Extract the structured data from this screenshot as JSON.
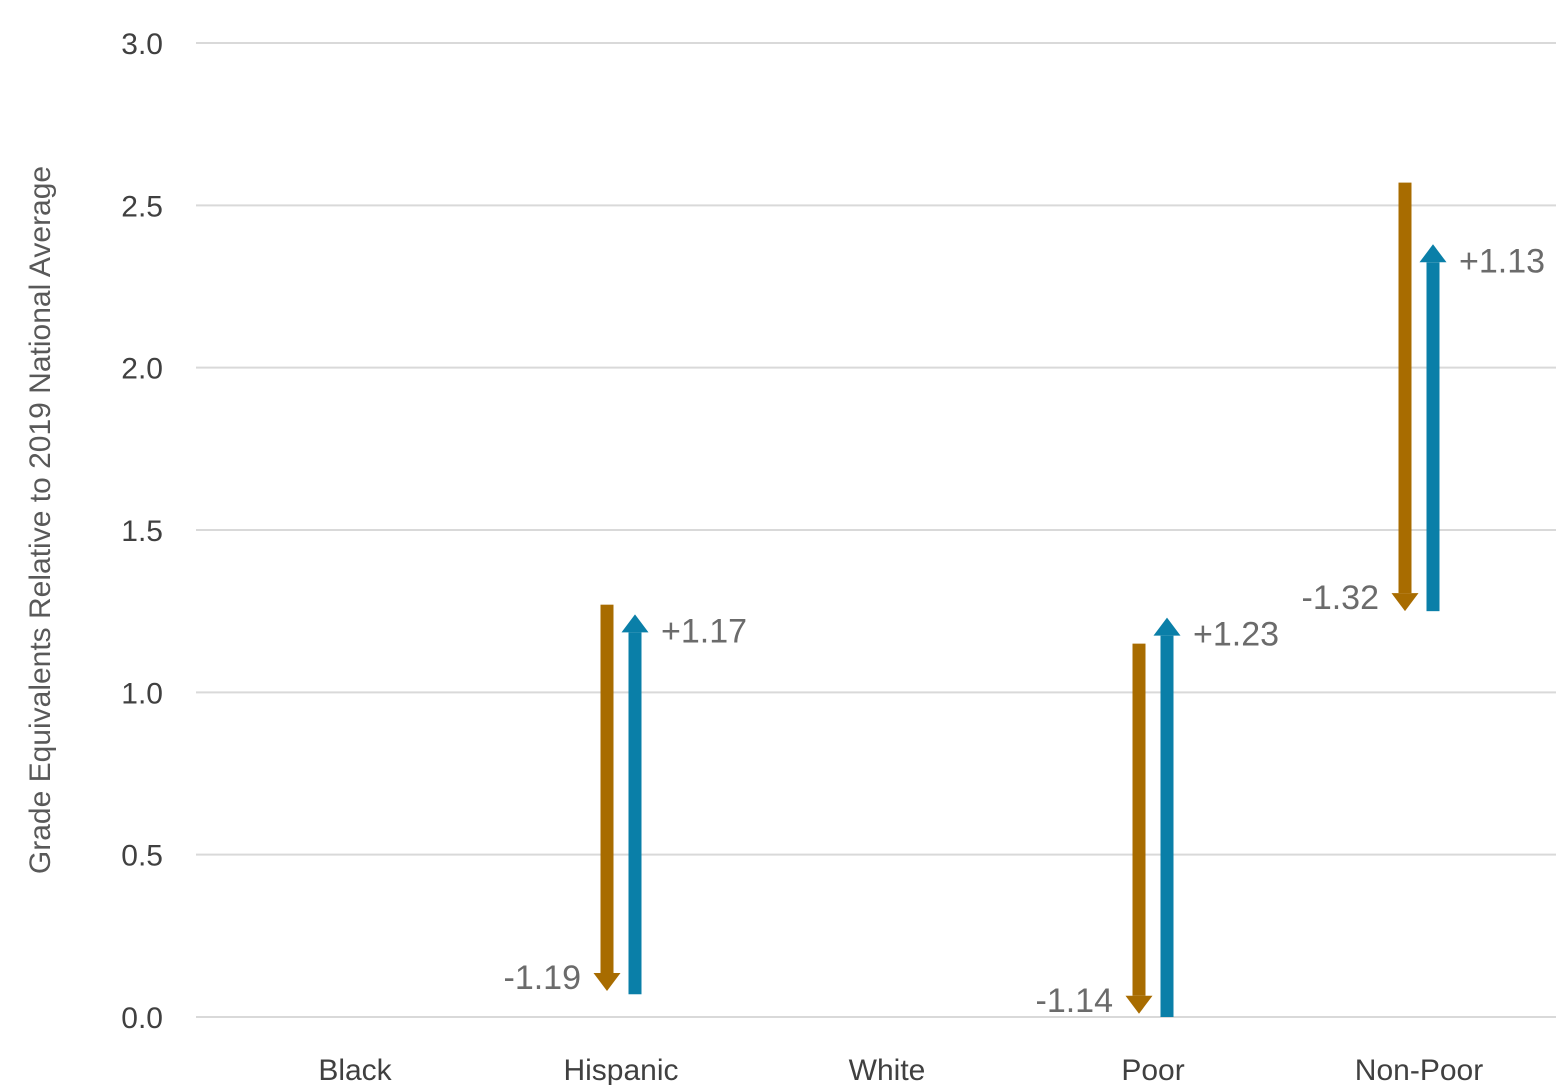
{
  "chart_data": {
    "type": "bar",
    "title": "",
    "xlabel": "",
    "ylabel": "Grade Equivalents Relative to 2019 National Average",
    "ylim": [
      0,
      3
    ],
    "yticks": [
      "0.0",
      "0.5",
      "1.0",
      "1.5",
      "2.0",
      "2.5",
      "3.0"
    ],
    "grid": true,
    "legend": "none",
    "categories": [
      "Black",
      "Hispanic",
      "White",
      "Poor",
      "Non-Poor"
    ],
    "series": [
      {
        "color": "#a86c00",
        "direction": "down",
        "values": [
          null,
          {
            "from": 1.27,
            "to": 0.08,
            "label": "-1.19"
          },
          null,
          {
            "from": 1.15,
            "to": 0.01,
            "label": "-1.14"
          },
          {
            "from": 2.57,
            "to": 1.25,
            "label": "-1.32"
          }
        ]
      },
      {
        "color": "#0a7fa8",
        "direction": "up",
        "values": [
          null,
          {
            "from": 0.07,
            "to": 1.24,
            "label": "+1.17"
          },
          null,
          {
            "from": 0.0,
            "to": 1.23,
            "label": "+1.23"
          },
          {
            "from": 1.25,
            "to": 2.38,
            "label": "+1.13"
          }
        ]
      }
    ]
  }
}
